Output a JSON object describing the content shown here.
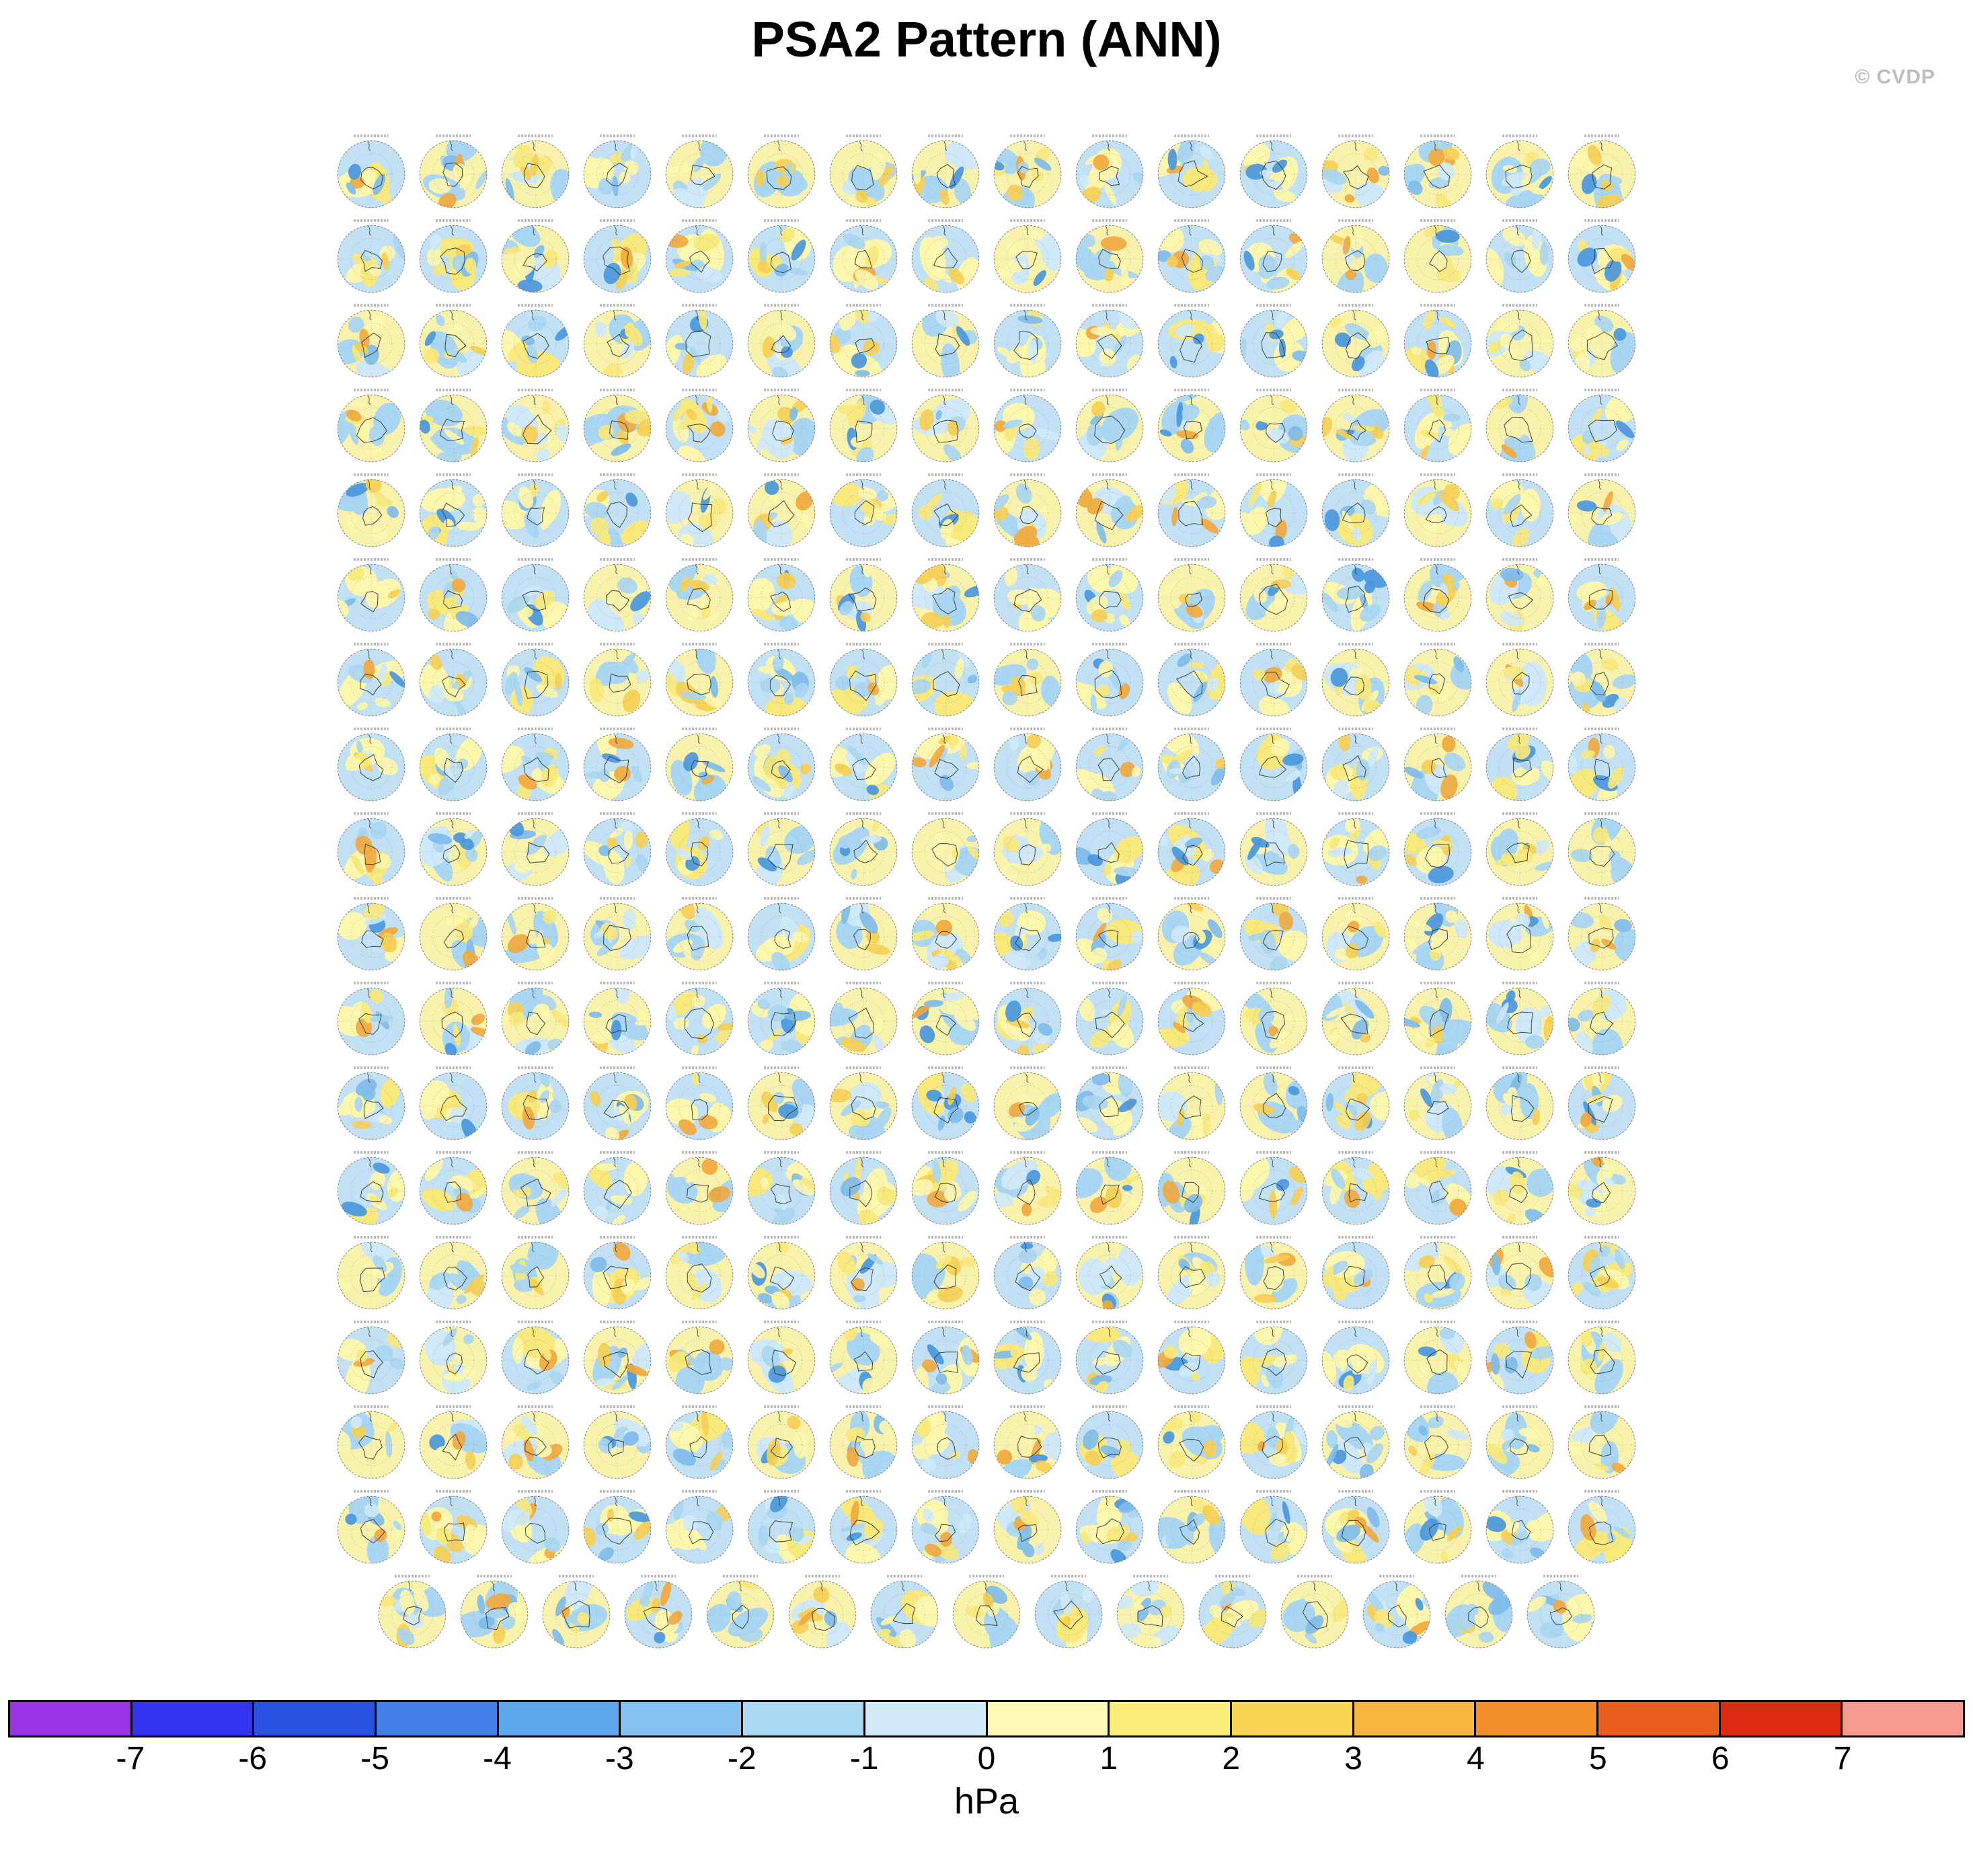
{
  "title": "PSA2 Pattern (ANN)",
  "watermark": "© CVDP",
  "colorbar": {
    "unit_label": "hPa",
    "tick_labels": [
      "-7",
      "-6",
      "-5",
      "-4",
      "-3",
      "-2",
      "-1",
      "0",
      "1",
      "2",
      "3",
      "4",
      "5",
      "6",
      "7"
    ],
    "colors": [
      "#9933e6",
      "#3333f0",
      "#2a52e0",
      "#3f7fe6",
      "#5ea7ec",
      "#84c1f0",
      "#aad7f4",
      "#cfe9f8",
      "#fdf9b5",
      "#fbed7a",
      "#f8d653",
      "#f5b53e",
      "#f28f2b",
      "#ea5f1d",
      "#dc2a14",
      "#f59a8f"
    ]
  },
  "panels": {
    "count": 287,
    "columns": 16,
    "full_rows": 17,
    "last_row_count": 15,
    "map_palette": {
      "base_yellow": "#f9f2ac",
      "base_blue": "#c2e1f5",
      "pale_blue": "#cfe9f8",
      "light_blue": "#a9d6f2",
      "med_blue": "#7fbcec",
      "deep_blue": "#4a97dd",
      "pale_yellow": "#fdf6ad",
      "yellow": "#f9e87c",
      "gold": "#f6cf55",
      "orange": "#f2a93e",
      "coast": "#3a3a3a",
      "graticule": "#8a8a8a"
    }
  },
  "chart_data": {
    "type": "heatmap",
    "title": "PSA2 Pattern (ANN)",
    "units": "hPa",
    "description": "Multi-panel figure of PSA2 (Pacific South American 2) sea-level-pressure pattern regressions for the annual mean; each panel is a Southern Hemisphere polar stereographic map for one model/ensemble member, values mostly between -1 and +2 hPa (pale blue and pale yellow shading).",
    "projection": "southern-hemisphere polar stereographic",
    "panel_count": 287,
    "grid": {
      "full_rows": 17,
      "columns": 16,
      "last_row_panels": 15
    },
    "colorbar_levels": [
      -7,
      -6,
      -5,
      -4,
      -3,
      -2,
      -1,
      0,
      1,
      2,
      3,
      4,
      5,
      6,
      7
    ],
    "colorbar_colors": [
      "#9933e6",
      "#3333f0",
      "#2a52e0",
      "#3f7fe6",
      "#5ea7ec",
      "#84c1f0",
      "#aad7f4",
      "#cfe9f8",
      "#fdf9b5",
      "#fbed7a",
      "#f8d653",
      "#f5b53e",
      "#f28f2b",
      "#ea5f1d",
      "#dc2a14",
      "#f59a8f"
    ],
    "legend_position": "bottom",
    "watermark": "© CVDP"
  }
}
